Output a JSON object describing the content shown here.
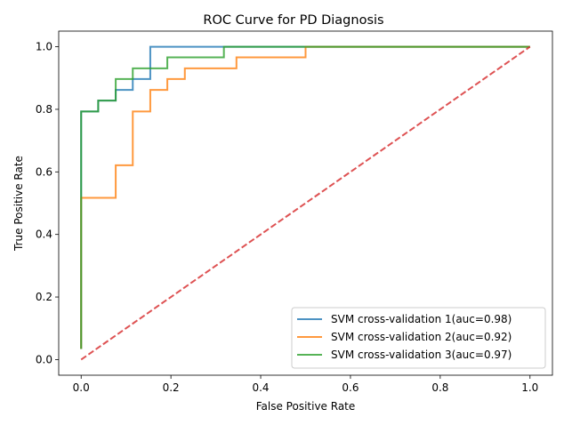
{
  "chart_data": {
    "type": "line",
    "title": "ROC Curve for PD Diagnosis",
    "xlabel": "False Positive Rate",
    "ylabel": "True Positive Rate",
    "xlim": [
      -0.05,
      1.05
    ],
    "ylim": [
      -0.05,
      1.05
    ],
    "xticks": [
      0.0,
      0.2,
      0.4,
      0.6,
      0.8,
      1.0
    ],
    "yticks": [
      0.0,
      0.2,
      0.4,
      0.6,
      0.8,
      1.0
    ],
    "xtick_labels": [
      "0.0",
      "0.2",
      "0.4",
      "0.6",
      "0.8",
      "1.0"
    ],
    "ytick_labels": [
      "0.0",
      "0.2",
      "0.4",
      "0.6",
      "0.8",
      "1.0"
    ],
    "grid": false,
    "legend_position": "lower-right",
    "series": [
      {
        "name": "SVM cross-validation 1(auc=0.98)",
        "color": "#1f77b4",
        "x": [
          0,
          0,
          0.038,
          0.038,
          0.077,
          0.077,
          0.115,
          0.115,
          0.154,
          0.154,
          1.0
        ],
        "y": [
          0.034,
          0.793,
          0.793,
          0.828,
          0.828,
          0.862,
          0.862,
          0.897,
          0.897,
          1.0,
          1.0
        ]
      },
      {
        "name": "SVM cross-validation 2(auc=0.92)",
        "color": "#ff7f0e",
        "x": [
          0,
          0,
          0.077,
          0.077,
          0.115,
          0.115,
          0.154,
          0.154,
          0.192,
          0.192,
          0.231,
          0.231,
          0.346,
          0.346,
          0.5,
          0.5,
          1.0
        ],
        "y": [
          0.034,
          0.517,
          0.517,
          0.621,
          0.621,
          0.793,
          0.793,
          0.862,
          0.862,
          0.897,
          0.897,
          0.931,
          0.931,
          0.966,
          0.966,
          1.0,
          1.0
        ]
      },
      {
        "name": "SVM cross-validation 3(auc=0.97)",
        "color": "#2ca02c",
        "x": [
          0,
          0,
          0.038,
          0.038,
          0.077,
          0.077,
          0.115,
          0.115,
          0.192,
          0.192,
          0.318,
          0.318,
          1.0
        ],
        "y": [
          0.034,
          0.793,
          0.793,
          0.828,
          0.828,
          0.897,
          0.897,
          0.931,
          0.931,
          0.966,
          0.966,
          1.0,
          1.0
        ]
      }
    ],
    "reference_line": {
      "name": "chance",
      "color": "#d62728",
      "style": "dashed",
      "x": [
        0,
        1
      ],
      "y": [
        0,
        1
      ]
    }
  }
}
